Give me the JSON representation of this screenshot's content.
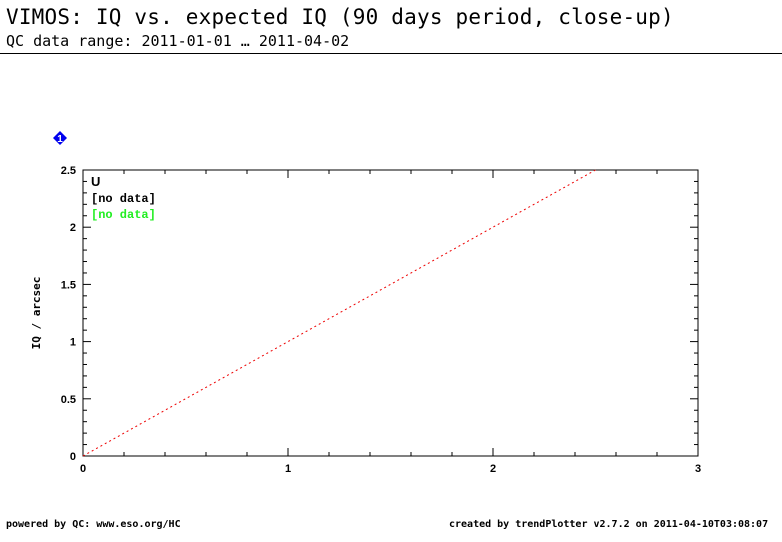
{
  "header": {
    "title": "VIMOS: IQ vs. expected IQ (90 days period, close-up)",
    "subtitle": "QC data range: 2011-01-01 … 2011-04-02"
  },
  "marker": {
    "label": "1",
    "color": "#0000ee",
    "icon": "diamond-number-marker-icon"
  },
  "chart_data": {
    "type": "scatter",
    "ylabel": "IQ / arcsec",
    "xlabel": "",
    "xlim": [
      0,
      3
    ],
    "ylim": [
      0,
      2.5
    ],
    "x_ticks": [
      "0",
      "1",
      "2",
      "3"
    ],
    "y_ticks": [
      "0",
      "0.5",
      "1",
      "1.5",
      "2",
      "2.5"
    ],
    "legend_position": "top-left",
    "legend": [
      {
        "text": "U",
        "color": "#000000"
      },
      {
        "text": "[no data]",
        "color": "#000000"
      },
      {
        "text": "[no data]",
        "color": "#22ee22"
      }
    ],
    "series": [],
    "reference_line": {
      "style": "dotted",
      "color": "#ee0000",
      "points": [
        [
          0,
          0
        ],
        [
          2.5,
          2.5
        ]
      ]
    }
  },
  "footer": {
    "left": "powered by QC: www.eso.org/HC",
    "right": "created by trendPlotter v2.7.2 on 2011-04-10T03:08:07"
  }
}
